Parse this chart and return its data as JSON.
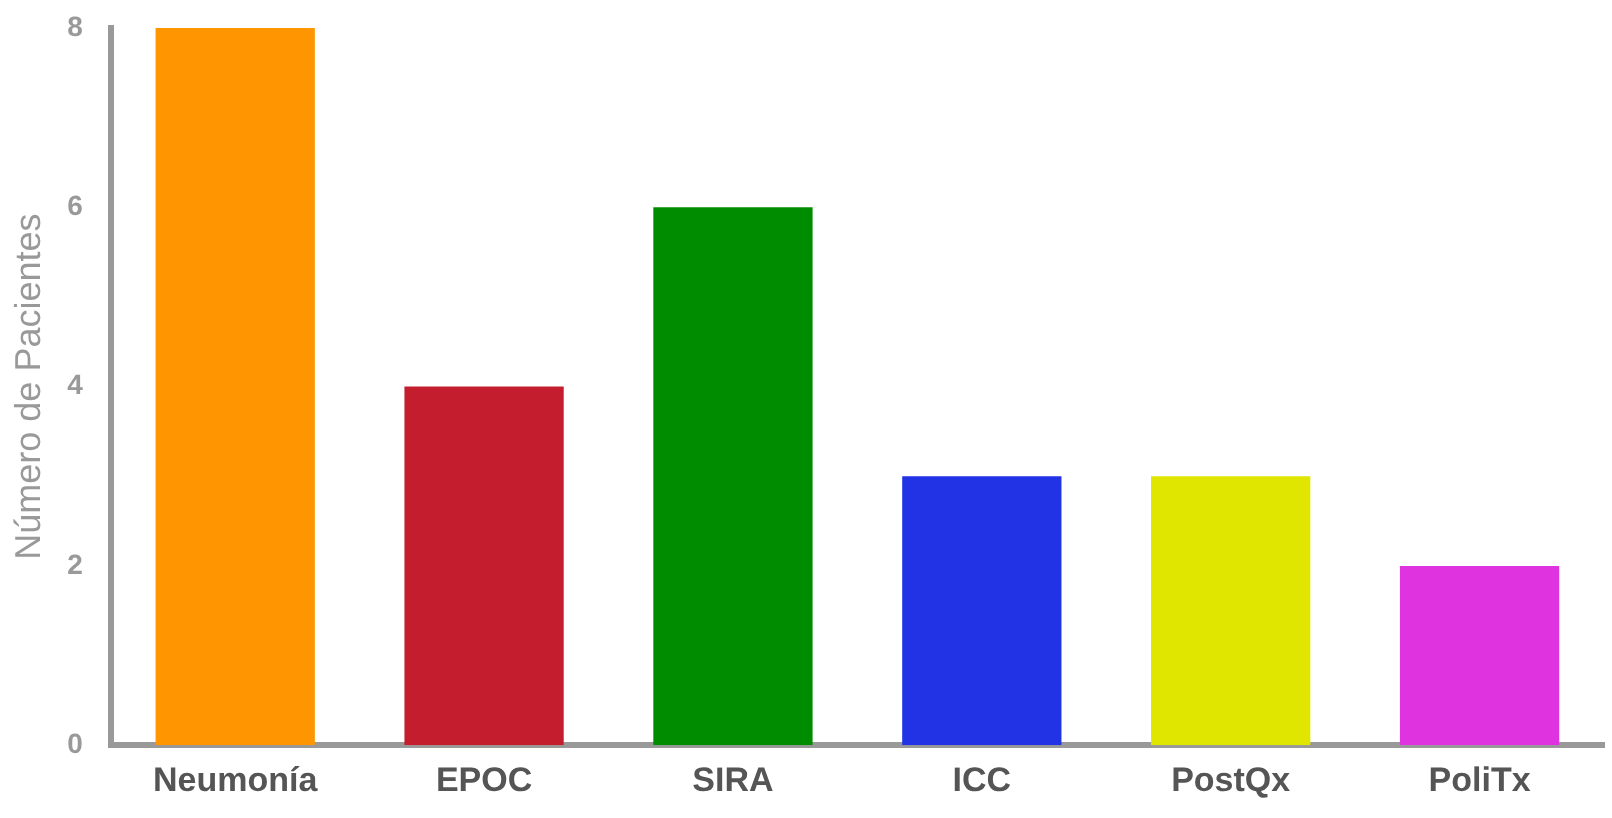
{
  "chart_data": {
    "type": "bar",
    "ylabel": "Número de Pacientes",
    "categories": [
      "Neumonía",
      "EPOC",
      "SIRA",
      "ICC",
      "PostQx",
      "PoliTx"
    ],
    "values": [
      8,
      4,
      6,
      3,
      3,
      2
    ],
    "colors": [
      "#ff9500",
      "#c41e2e",
      "#008c00",
      "#2233e6",
      "#e0e600",
      "#e033e0"
    ],
    "ylim": [
      0,
      8
    ],
    "yticks": [
      0,
      2,
      4,
      6,
      8
    ],
    "grid": false,
    "legend": false
  }
}
